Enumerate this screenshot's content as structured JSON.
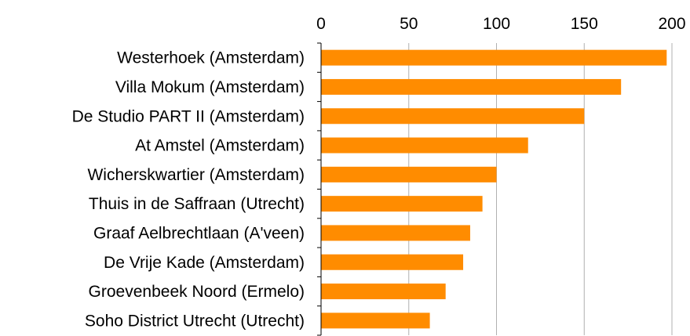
{
  "chart_data": {
    "type": "bar",
    "orientation": "horizontal",
    "x_axis_position": "top",
    "categories": [
      "Westerhoek (Amsterdam)",
      "Villa Mokum (Amsterdam)",
      "De Studio PART II (Amsterdam)",
      "At Amstel (Amsterdam)",
      "Wicherskwartier (Amsterdam)",
      "Thuis in de Saffraan (Utrecht)",
      "Graaf Aelbrechtlaan (A'veen)",
      "De Vrije Kade (Amsterdam)",
      "Groevenbeek Noord (Ermelo)",
      "Soho District Utrecht (Utrecht)"
    ],
    "values": [
      197,
      171,
      150,
      118,
      100,
      92,
      85,
      81,
      71,
      62
    ],
    "xlim": [
      0,
      200
    ],
    "ticks": [
      0,
      50,
      100,
      150,
      200
    ],
    "tick_labels": [
      "0",
      "50",
      "100",
      "150",
      "200"
    ],
    "grid": true,
    "bar_color": "#FF8C00",
    "grid_color": "#B0B0B0"
  }
}
